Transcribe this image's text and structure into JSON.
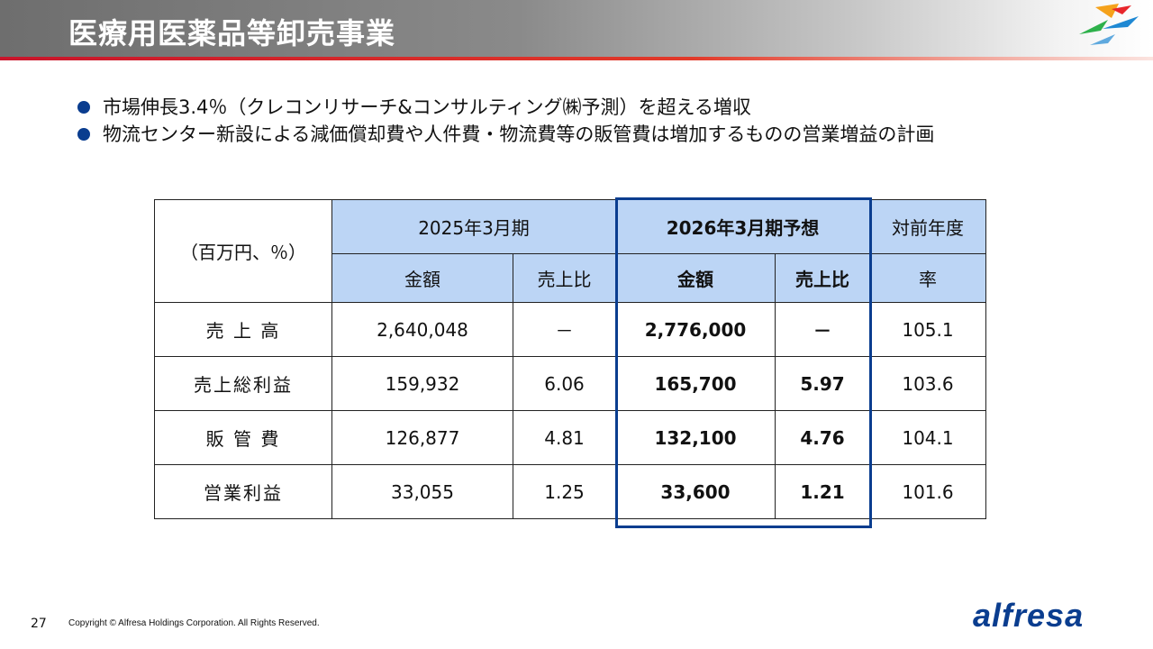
{
  "header": {
    "title": "医療用医薬品等卸売事業",
    "accent_colors": [
      "#e8262b",
      "#f5a21b",
      "#2eb14b",
      "#1e88d3"
    ]
  },
  "bullets": [
    "市場伸長3.4％（クレコンリサーチ&コンサルティング㈱予測）を超える増収",
    "物流センター新設による減価償却費や人件費・物流費等の販管費は増加するものの営業増益の計画"
  ],
  "table": {
    "unit_label": "（百万円、％）",
    "col_groups": {
      "fy2025": "2025年3月期",
      "fy2026": "2026年3月期予想",
      "yoy": "対前年度"
    },
    "sub_headers": {
      "amount_2025": "金額",
      "ratio_2025": "売上比",
      "amount_2026": "金額",
      "ratio_2026": "売上比",
      "rate": "率"
    },
    "rows": [
      {
        "label": "売 上 高",
        "amount_2025": "2,640,048",
        "ratio_2025": "－",
        "amount_2026": "2,776,000",
        "ratio_2026": "－",
        "yoy": "105.1"
      },
      {
        "label": "売上総利益",
        "amount_2025": "159,932",
        "ratio_2025": "6.06",
        "amount_2026": "165,700",
        "ratio_2026": "5.97",
        "yoy": "103.6"
      },
      {
        "label": "販 管 費",
        "amount_2025": "126,877",
        "ratio_2025": "4.81",
        "amount_2026": "132,100",
        "ratio_2026": "4.76",
        "yoy": "104.1"
      },
      {
        "label": "営業利益",
        "amount_2025": "33,055",
        "ratio_2025": "1.25",
        "amount_2026": "33,600",
        "ratio_2026": "1.21",
        "yoy": "101.6"
      }
    ],
    "highlight_color": "#0a3d8f",
    "header_fill": "#bcd5f5"
  },
  "footer": {
    "page_number": "27",
    "copyright": "Copyright © Alfresa Holdings Corporation. All Rights Reserved.",
    "brand": "alfresa"
  }
}
